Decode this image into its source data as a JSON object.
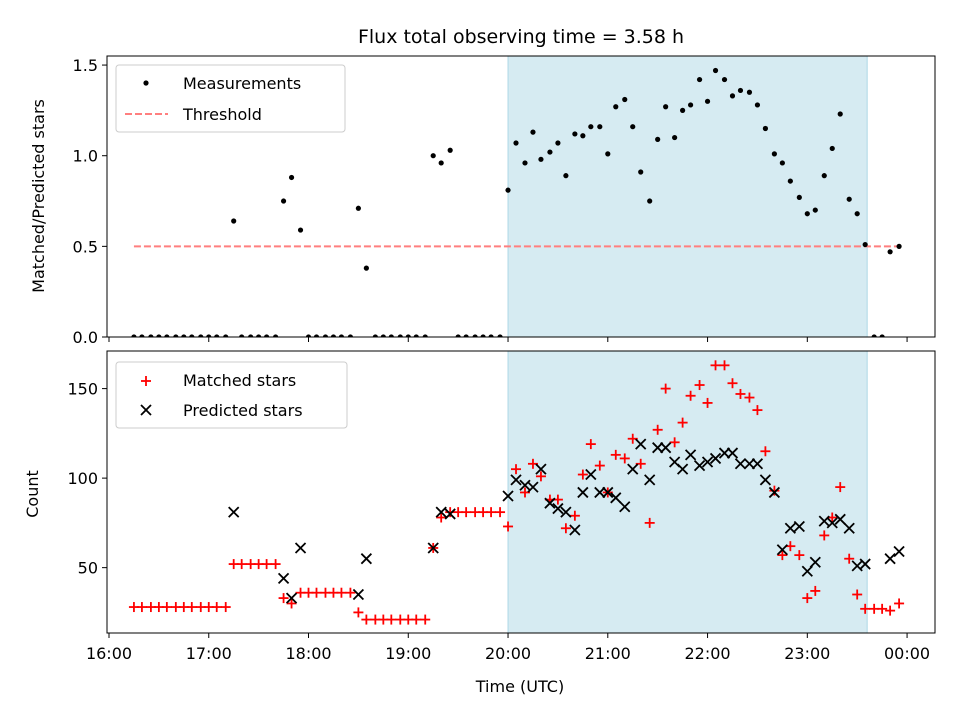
{
  "title": "Flux total observing time = 3.58 h",
  "colors": {
    "measurement": "#000000",
    "threshold": "#ff7f7f",
    "matched": "#ff0000",
    "predicted": "#000000",
    "span": "#add8e6"
  },
  "chart_data": [
    {
      "type": "scatter",
      "panel": "top",
      "ylabel": "Matched/Predicted stars",
      "xlim": [
        15.98,
        24.28
      ],
      "ylim": [
        0,
        1.55
      ],
      "yticks": [
        0,
        0.5,
        1.0,
        1.5
      ],
      "ytick_labels": [
        "0.0",
        "0.5",
        "1.0",
        "1.5"
      ],
      "highlight_span": [
        20.0,
        23.6
      ],
      "legend": {
        "position": "upper-left",
        "measurements_label": "Measurements",
        "threshold_label": "Threshold"
      },
      "threshold": {
        "value": 0.5,
        "x_range": [
          16.25,
          23.95
        ]
      },
      "series": [
        {
          "name": "Measurements",
          "points": [
            [
              16.25,
              0
            ],
            [
              16.33,
              0
            ],
            [
              16.42,
              0
            ],
            [
              16.5,
              0
            ],
            [
              16.58,
              0
            ],
            [
              16.67,
              0
            ],
            [
              16.75,
              0
            ],
            [
              16.83,
              0
            ],
            [
              16.92,
              0
            ],
            [
              17.0,
              0
            ],
            [
              17.08,
              0
            ],
            [
              17.17,
              0
            ],
            [
              17.25,
              0.64
            ],
            [
              17.33,
              0
            ],
            [
              17.42,
              0
            ],
            [
              17.5,
              0
            ],
            [
              17.58,
              0
            ],
            [
              17.67,
              0
            ],
            [
              17.75,
              0.75
            ],
            [
              17.83,
              0.88
            ],
            [
              17.92,
              0.59
            ],
            [
              18.0,
              0
            ],
            [
              18.08,
              0
            ],
            [
              18.17,
              0
            ],
            [
              18.25,
              0
            ],
            [
              18.33,
              0
            ],
            [
              18.42,
              0
            ],
            [
              18.5,
              0.71
            ],
            [
              18.58,
              0.38
            ],
            [
              18.67,
              0
            ],
            [
              18.75,
              0
            ],
            [
              18.83,
              0
            ],
            [
              18.92,
              0
            ],
            [
              19.0,
              0
            ],
            [
              19.08,
              0
            ],
            [
              19.17,
              0
            ],
            [
              19.25,
              1.0
            ],
            [
              19.33,
              0.96
            ],
            [
              19.42,
              1.03
            ],
            [
              19.5,
              0
            ],
            [
              19.58,
              0
            ],
            [
              19.67,
              0
            ],
            [
              19.75,
              0
            ],
            [
              19.83,
              0
            ],
            [
              19.92,
              0
            ],
            [
              20.0,
              0.81
            ],
            [
              20.08,
              1.07
            ],
            [
              20.17,
              0.96
            ],
            [
              20.25,
              1.13
            ],
            [
              20.33,
              0.98
            ],
            [
              20.42,
              1.02
            ],
            [
              20.5,
              1.07
            ],
            [
              20.58,
              0.89
            ],
            [
              20.67,
              1.12
            ],
            [
              20.75,
              1.11
            ],
            [
              20.83,
              1.16
            ],
            [
              20.92,
              1.16
            ],
            [
              21.0,
              1.01
            ],
            [
              21.08,
              1.27
            ],
            [
              21.17,
              1.31
            ],
            [
              21.25,
              1.16
            ],
            [
              21.33,
              0.91
            ],
            [
              21.42,
              0.75
            ],
            [
              21.5,
              1.09
            ],
            [
              21.58,
              1.27
            ],
            [
              21.67,
              1.1
            ],
            [
              21.75,
              1.25
            ],
            [
              21.83,
              1.28
            ],
            [
              21.92,
              1.42
            ],
            [
              22.0,
              1.3
            ],
            [
              22.08,
              1.47
            ],
            [
              22.17,
              1.42
            ],
            [
              22.25,
              1.33
            ],
            [
              22.33,
              1.36
            ],
            [
              22.42,
              1.35
            ],
            [
              22.5,
              1.28
            ],
            [
              22.58,
              1.15
            ],
            [
              22.67,
              1.01
            ],
            [
              22.75,
              0.96
            ],
            [
              22.83,
              0.86
            ],
            [
              22.92,
              0.77
            ],
            [
              23.0,
              0.68
            ],
            [
              23.08,
              0.7
            ],
            [
              23.17,
              0.89
            ],
            [
              23.25,
              1.04
            ],
            [
              23.33,
              1.23
            ],
            [
              23.42,
              0.76
            ],
            [
              23.5,
              0.68
            ],
            [
              23.58,
              0.51
            ],
            [
              23.67,
              0
            ],
            [
              23.75,
              0
            ],
            [
              23.83,
              0.47
            ],
            [
              23.92,
              0.5
            ]
          ]
        }
      ]
    },
    {
      "type": "scatter",
      "panel": "bottom",
      "title": "",
      "xlabel": "Time (UTC)",
      "ylabel": "Count",
      "xlim": [
        15.98,
        24.28
      ],
      "ylim": [
        13.5,
        171
      ],
      "xticks": [
        16,
        17,
        18,
        19,
        20,
        21,
        22,
        23,
        24
      ],
      "xtick_labels": [
        "16:00",
        "17:00",
        "18:00",
        "19:00",
        "20:00",
        "21:00",
        "22:00",
        "23:00",
        "00:00"
      ],
      "yticks": [
        50,
        100,
        150
      ],
      "ytick_labels": [
        "50",
        "100",
        "150"
      ],
      "highlight_span": [
        20.0,
        23.6
      ],
      "legend": {
        "position": "upper-left",
        "matched_label": "Matched stars",
        "predicted_label": "Predicted stars"
      },
      "series": [
        {
          "name": "Matched stars",
          "marker": "plus",
          "points": [
            [
              16.25,
              28
            ],
            [
              16.33,
              28
            ],
            [
              16.42,
              28
            ],
            [
              16.5,
              28
            ],
            [
              16.58,
              28
            ],
            [
              16.67,
              28
            ],
            [
              16.75,
              28
            ],
            [
              16.83,
              28
            ],
            [
              16.92,
              28
            ],
            [
              17.0,
              28
            ],
            [
              17.08,
              28
            ],
            [
              17.17,
              28
            ],
            [
              17.25,
              52
            ],
            [
              17.33,
              52
            ],
            [
              17.42,
              52
            ],
            [
              17.5,
              52
            ],
            [
              17.58,
              52
            ],
            [
              17.67,
              52
            ],
            [
              17.75,
              33
            ],
            [
              17.83,
              30
            ],
            [
              17.92,
              36
            ],
            [
              18.0,
              36
            ],
            [
              18.08,
              36
            ],
            [
              18.17,
              36
            ],
            [
              18.25,
              36
            ],
            [
              18.33,
              36
            ],
            [
              18.42,
              36
            ],
            [
              18.5,
              25
            ],
            [
              18.58,
              21
            ],
            [
              18.67,
              21
            ],
            [
              18.75,
              21
            ],
            [
              18.83,
              21
            ],
            [
              18.92,
              21
            ],
            [
              19.0,
              21
            ],
            [
              19.08,
              21
            ],
            [
              19.17,
              21
            ],
            [
              19.25,
              61
            ],
            [
              19.33,
              78
            ],
            [
              19.42,
              81
            ],
            [
              19.5,
              81
            ],
            [
              19.58,
              81
            ],
            [
              19.67,
              81
            ],
            [
              19.75,
              81
            ],
            [
              19.83,
              81
            ],
            [
              19.92,
              81
            ],
            [
              20.0,
              73
            ],
            [
              20.08,
              105
            ],
            [
              20.17,
              92
            ],
            [
              20.25,
              108
            ],
            [
              20.33,
              101
            ],
            [
              20.42,
              88
            ],
            [
              20.5,
              88
            ],
            [
              20.58,
              72
            ],
            [
              20.67,
              79
            ],
            [
              20.75,
              102
            ],
            [
              20.83,
              119
            ],
            [
              20.92,
              107
            ],
            [
              21.0,
              92
            ],
            [
              21.08,
              113
            ],
            [
              21.17,
              111
            ],
            [
              21.25,
              122
            ],
            [
              21.33,
              108
            ],
            [
              21.42,
              75
            ],
            [
              21.5,
              127
            ],
            [
              21.58,
              150
            ],
            [
              21.67,
              120
            ],
            [
              21.75,
              131
            ],
            [
              21.83,
              146
            ],
            [
              21.92,
              152
            ],
            [
              22.0,
              142
            ],
            [
              22.08,
              163
            ],
            [
              22.17,
              163
            ],
            [
              22.25,
              153
            ],
            [
              22.33,
              147
            ],
            [
              22.42,
              145
            ],
            [
              22.5,
              138
            ],
            [
              22.58,
              115
            ],
            [
              22.67,
              93
            ],
            [
              22.75,
              57
            ],
            [
              22.83,
              62
            ],
            [
              22.92,
              57
            ],
            [
              23.0,
              33
            ],
            [
              23.08,
              37
            ],
            [
              23.17,
              68
            ],
            [
              23.25,
              78
            ],
            [
              23.33,
              95
            ],
            [
              23.42,
              55
            ],
            [
              23.5,
              35
            ],
            [
              23.58,
              27
            ],
            [
              23.67,
              27
            ],
            [
              23.75,
              27
            ],
            [
              23.83,
              26
            ],
            [
              23.92,
              30
            ]
          ]
        },
        {
          "name": "Predicted stars",
          "marker": "x",
          "points": [
            [
              17.25,
              81
            ],
            [
              17.75,
              44
            ],
            [
              17.83,
              33
            ],
            [
              17.92,
              61
            ],
            [
              18.5,
              35
            ],
            [
              18.58,
              55
            ],
            [
              19.25,
              61
            ],
            [
              19.33,
              81
            ],
            [
              19.42,
              80
            ],
            [
              20.0,
              90
            ],
            [
              20.08,
              99
            ],
            [
              20.17,
              96
            ],
            [
              20.25,
              95
            ],
            [
              20.33,
              105
            ],
            [
              20.42,
              86
            ],
            [
              20.5,
              83
            ],
            [
              20.58,
              81
            ],
            [
              20.67,
              71
            ],
            [
              20.75,
              92
            ],
            [
              20.83,
              102
            ],
            [
              20.92,
              92
            ],
            [
              21.0,
              92
            ],
            [
              21.08,
              89
            ],
            [
              21.17,
              84
            ],
            [
              21.25,
              105
            ],
            [
              21.33,
              119
            ],
            [
              21.42,
              99
            ],
            [
              21.5,
              117
            ],
            [
              21.58,
              117
            ],
            [
              21.67,
              109
            ],
            [
              21.75,
              105
            ],
            [
              21.83,
              113
            ],
            [
              21.92,
              107
            ],
            [
              22.0,
              109
            ],
            [
              22.08,
              111
            ],
            [
              22.17,
              114
            ],
            [
              22.25,
              114
            ],
            [
              22.33,
              108
            ],
            [
              22.42,
              108
            ],
            [
              22.5,
              108
            ],
            [
              22.58,
              99
            ],
            [
              22.67,
              92
            ],
            [
              22.75,
              60
            ],
            [
              22.83,
              72
            ],
            [
              22.92,
              73
            ],
            [
              23.0,
              48
            ],
            [
              23.08,
              53
            ],
            [
              23.17,
              76
            ],
            [
              23.25,
              75
            ],
            [
              23.33,
              77
            ],
            [
              23.42,
              72
            ],
            [
              23.5,
              51
            ],
            [
              23.58,
              52
            ],
            [
              23.83,
              55
            ],
            [
              23.92,
              59
            ]
          ]
        }
      ]
    }
  ]
}
